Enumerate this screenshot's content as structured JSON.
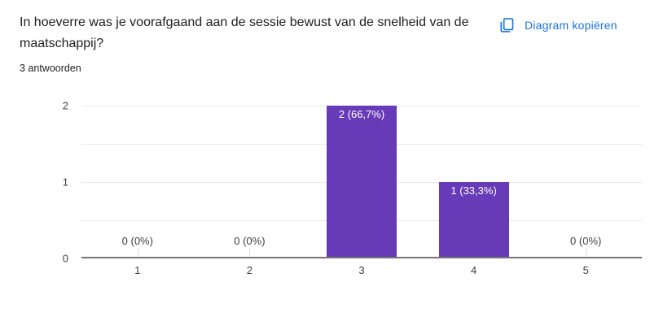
{
  "header": {
    "title": "In hoeverre was je voorafgaand aan de sessie bewust van de snelheid van de maatschappij?",
    "subtitle": "3 antwoorden",
    "copy_button_label": "Diagram kopiëren"
  },
  "chart_data": {
    "type": "bar",
    "title": "In hoeverre was je voorafgaand aan de sessie bewust van de snelheid van de maatschappij?",
    "categories": [
      "1",
      "2",
      "3",
      "4",
      "5"
    ],
    "values": [
      0,
      0,
      2,
      1,
      0
    ],
    "value_labels": [
      "0 (0%)",
      "0 (0%)",
      "2 (66,7%)",
      "1 (33,3%)",
      "0 (0%)"
    ],
    "xlabel": "",
    "ylabel": "",
    "y_ticks": [
      0,
      1,
      2
    ],
    "ylim": [
      0,
      2
    ],
    "gridline_step": 0.5,
    "grid": true,
    "legend": false,
    "bar_color": "#673ab7"
  },
  "colors": {
    "accent_blue": "#1a73e8",
    "bar_purple": "#673ab7",
    "title_text": "#202124",
    "axis_text": "#3c4043",
    "gridline": "#e9e9e9",
    "baseline": "#757575"
  }
}
